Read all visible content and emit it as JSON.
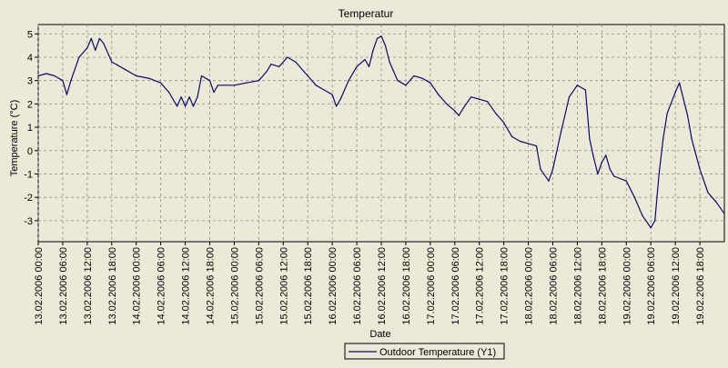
{
  "chart_data": {
    "type": "line",
    "title": "Temperatur",
    "xlabel": "Date",
    "ylabel": "Temperature (°C)",
    "x_range": [
      "13.02.2006 00:00",
      "20.02.2006 00:00"
    ],
    "ylim": [
      -3.9,
      5.4
    ],
    "y_ticks": [
      5,
      4,
      3,
      2,
      1,
      0,
      -1,
      -2,
      -3
    ],
    "x_ticks": [
      "13.02.2006 00:00",
      "13.02.2006 06:00",
      "13.02.2006 12:00",
      "13.02.2006 18:00",
      "14.02.2006 00:00",
      "14.02.2006 06:00",
      "14.02.2006 12:00",
      "14.02.2006 18:00",
      "15.02.2006 00:00",
      "15.02.2006 06:00",
      "15.02.2006 12:00",
      "15.02.2006 18:00",
      "16.02.2006 00:00",
      "16.02.2006 06:00",
      "16.02.2006 12:00",
      "16.02.2006 18:00",
      "17.02.2006 00:00",
      "17.02.2006 06:00",
      "17.02.2006 12:00",
      "17.02.2006 18:00",
      "18.02.2006 00:00",
      "18.02.2006 06:00",
      "18.02.2006 12:00",
      "18.02.2006 18:00",
      "19.02.2006 00:00",
      "19.02.2006 06:00",
      "19.02.2006 12:00",
      "19.02.2006 18:00"
    ],
    "grid": true,
    "legend_position": "bottom-center",
    "colors": {
      "background": "#ece9d8",
      "line": "#0a0a64",
      "grid": "#8c8c8c"
    },
    "series": [
      {
        "name": "Outdoor Temperature (Y1)",
        "points": [
          [
            "13.02.2006 00:00",
            3.2
          ],
          [
            "13.02.2006 02:00",
            3.3
          ],
          [
            "13.02.2006 04:00",
            3.2
          ],
          [
            "13.02.2006 06:00",
            3.0
          ],
          [
            "13.02.2006 07:00",
            2.4
          ],
          [
            "13.02.2006 08:00",
            3.0
          ],
          [
            "13.02.2006 10:00",
            4.0
          ],
          [
            "13.02.2006 12:00",
            4.4
          ],
          [
            "13.02.2006 13:00",
            4.8
          ],
          [
            "13.02.2006 14:00",
            4.3
          ],
          [
            "13.02.2006 15:00",
            4.8
          ],
          [
            "13.02.2006 16:00",
            4.6
          ],
          [
            "13.02.2006 18:00",
            3.8
          ],
          [
            "13.02.2006 21:00",
            3.5
          ],
          [
            "14.02.2006 00:00",
            3.2
          ],
          [
            "14.02.2006 03:00",
            3.1
          ],
          [
            "14.02.2006 06:00",
            2.9
          ],
          [
            "14.02.2006 08:00",
            2.5
          ],
          [
            "14.02.2006 10:00",
            1.9
          ],
          [
            "14.02.2006 11:00",
            2.3
          ],
          [
            "14.02.2006 12:00",
            1.9
          ],
          [
            "14.02.2006 13:00",
            2.3
          ],
          [
            "14.02.2006 14:00",
            1.9
          ],
          [
            "14.02.2006 15:00",
            2.3
          ],
          [
            "14.02.2006 16:00",
            3.2
          ],
          [
            "14.02.2006 18:00",
            3.0
          ],
          [
            "14.02.2006 19:00",
            2.5
          ],
          [
            "14.02.2006 20:00",
            2.8
          ],
          [
            "15.02.2006 00:00",
            2.8
          ],
          [
            "15.02.2006 03:00",
            2.9
          ],
          [
            "15.02.2006 06:00",
            3.0
          ],
          [
            "15.02.2006 08:00",
            3.4
          ],
          [
            "15.02.2006 09:00",
            3.7
          ],
          [
            "15.02.2006 11:00",
            3.6
          ],
          [
            "15.02.2006 13:00",
            4.0
          ],
          [
            "15.02.2006 15:00",
            3.8
          ],
          [
            "15.02.2006 18:00",
            3.2
          ],
          [
            "15.02.2006 20:00",
            2.8
          ],
          [
            "15.02.2006 22:00",
            2.6
          ],
          [
            "16.02.2006 00:00",
            2.4
          ],
          [
            "16.02.2006 01:00",
            1.9
          ],
          [
            "16.02.2006 02:00",
            2.2
          ],
          [
            "16.02.2006 04:00",
            3.0
          ],
          [
            "16.02.2006 06:00",
            3.6
          ],
          [
            "16.02.2006 08:00",
            3.9
          ],
          [
            "16.02.2006 09:00",
            3.6
          ],
          [
            "16.02.2006 10:00",
            4.3
          ],
          [
            "16.02.2006 11:00",
            4.8
          ],
          [
            "16.02.2006 12:00",
            4.9
          ],
          [
            "16.02.2006 13:00",
            4.5
          ],
          [
            "16.02.2006 14:00",
            3.8
          ],
          [
            "16.02.2006 16:00",
            3.0
          ],
          [
            "16.02.2006 18:00",
            2.8
          ],
          [
            "16.02.2006 20:00",
            3.2
          ],
          [
            "16.02.2006 22:00",
            3.1
          ],
          [
            "17.02.2006 00:00",
            2.9
          ],
          [
            "17.02.2006 02:00",
            2.4
          ],
          [
            "17.02.2006 04:00",
            2.0
          ],
          [
            "17.02.2006 06:00",
            1.7
          ],
          [
            "17.02.2006 07:00",
            1.5
          ],
          [
            "17.02.2006 08:00",
            1.8
          ],
          [
            "17.02.2006 10:00",
            2.3
          ],
          [
            "17.02.2006 12:00",
            2.2
          ],
          [
            "17.02.2006 14:00",
            2.1
          ],
          [
            "17.02.2006 16:00",
            1.6
          ],
          [
            "17.02.2006 18:00",
            1.2
          ],
          [
            "17.02.2006 20:00",
            0.6
          ],
          [
            "17.02.2006 22:00",
            0.4
          ],
          [
            "18.02.2006 00:00",
            0.3
          ],
          [
            "18.02.2006 02:00",
            0.2
          ],
          [
            "18.02.2006 03:00",
            -0.8
          ],
          [
            "18.02.2006 05:00",
            -1.3
          ],
          [
            "18.02.2006 06:00",
            -0.8
          ],
          [
            "18.02.2006 08:00",
            0.8
          ],
          [
            "18.02.2006 10:00",
            2.3
          ],
          [
            "18.02.2006 12:00",
            2.8
          ],
          [
            "18.02.2006 14:00",
            2.6
          ],
          [
            "18.02.2006 15:00",
            0.5
          ],
          [
            "18.02.2006 16:00",
            -0.3
          ],
          [
            "18.02.2006 17:00",
            -1.0
          ],
          [
            "18.02.2006 18:00",
            -0.5
          ],
          [
            "18.02.2006 19:00",
            -0.2
          ],
          [
            "18.02.2006 20:00",
            -0.8
          ],
          [
            "18.02.2006 21:00",
            -1.1
          ],
          [
            "19.02.2006 00:00",
            -1.3
          ],
          [
            "19.02.2006 02:00",
            -2.0
          ],
          [
            "19.02.2006 04:00",
            -2.8
          ],
          [
            "19.02.2006 06:00",
            -3.3
          ],
          [
            "19.02.2006 07:00",
            -3.0
          ],
          [
            "19.02.2006 08:00",
            -1.0
          ],
          [
            "19.02.2006 09:00",
            0.5
          ],
          [
            "19.02.2006 10:00",
            1.6
          ],
          [
            "19.02.2006 12:00",
            2.5
          ],
          [
            "19.02.2006 13:00",
            2.9
          ],
          [
            "19.02.2006 14:00",
            2.2
          ],
          [
            "19.02.2006 15:00",
            1.5
          ],
          [
            "19.02.2006 16:00",
            0.5
          ],
          [
            "19.02.2006 18:00",
            -0.8
          ],
          [
            "19.02.2006 20:00",
            -1.8
          ],
          [
            "19.02.2006 22:00",
            -2.2
          ],
          [
            "20.02.2006 00:00",
            -2.7
          ]
        ]
      }
    ]
  }
}
